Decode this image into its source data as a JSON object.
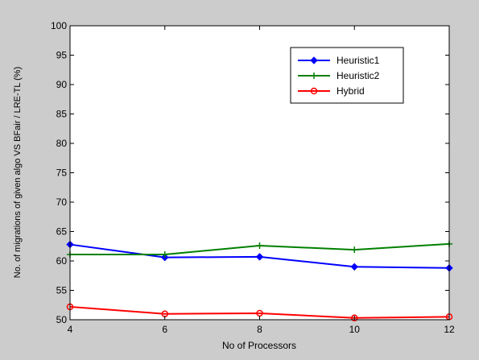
{
  "chart_data": {
    "type": "line",
    "title": "",
    "xlabel": "No of Processors",
    "ylabel": "No. of migrations of given algo VS BFair / LRE-TL (%)",
    "x": [
      4,
      6,
      8,
      10,
      12
    ],
    "xlim": [
      4,
      12
    ],
    "ylim": [
      50,
      100
    ],
    "xticks": [
      4,
      6,
      8,
      10,
      12
    ],
    "yticks": [
      50,
      55,
      60,
      65,
      70,
      75,
      80,
      85,
      90,
      95,
      100
    ],
    "grid": false,
    "legend_position": "top-right",
    "series": [
      {
        "name": "Heuristic1",
        "color": "#0000ff",
        "marker": "diamond",
        "values": [
          62.8,
          60.6,
          60.7,
          59.0,
          58.8
        ]
      },
      {
        "name": "Heuristic2",
        "color": "#008000",
        "marker": "plus",
        "values": [
          61.1,
          61.1,
          62.6,
          61.9,
          62.9
        ]
      },
      {
        "name": "Hybrid",
        "color": "#ff0000",
        "marker": "circle",
        "values": [
          52.2,
          51.0,
          51.1,
          50.3,
          50.5
        ]
      }
    ]
  }
}
